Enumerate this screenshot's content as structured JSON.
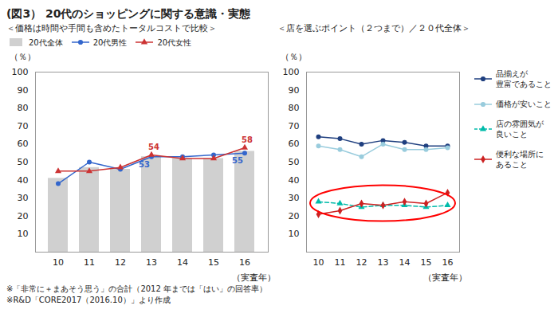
{
  "chart_data": [
    {
      "type": "bar",
      "title": "(図3） 20代のショッピングに関する意識・実態",
      "subtitle": "＜価格は時間や手間も含めたトータルコストで比較＞",
      "categories": [
        "10",
        "11",
        "12",
        "13",
        "14",
        "15",
        "16"
      ],
      "xlabel": "（実査年）",
      "ylabel": "（％）",
      "series": [
        {
          "name": "20代全体",
          "type": "bar",
          "color": "#d0d0d0",
          "values": [
            41,
            47,
            46,
            53,
            52,
            52,
            56
          ]
        },
        {
          "name": "20代男性",
          "type": "line",
          "color": "#3366cc",
          "marker": "circle",
          "values": [
            38,
            50,
            46,
            53,
            53,
            54,
            55
          ],
          "value_labels": [
            null,
            null,
            null,
            "53",
            null,
            null,
            "55"
          ]
        },
        {
          "name": "20代女性",
          "type": "line",
          "color": "#cc3333",
          "marker": "triangle",
          "values": [
            45,
            45,
            47,
            54,
            52,
            52,
            58
          ],
          "value_labels": [
            null,
            null,
            null,
            "54",
            null,
            null,
            "58"
          ]
        }
      ],
      "ylim": [
        0,
        100
      ],
      "yticks": [
        10,
        20,
        30,
        40,
        50,
        60,
        70,
        80,
        90,
        100
      ],
      "legend": "top"
    },
    {
      "type": "line",
      "subtitle": "＜店を選ぶポイント（２つまで）／２０代全体＞",
      "categories": [
        "10",
        "11",
        "12",
        "13",
        "14",
        "15",
        "16"
      ],
      "xlabel": "（実査年）",
      "ylabel": "（％）",
      "series": [
        {
          "name": "品揃えが\n豊富であること",
          "color": "#1f3f7f",
          "marker": "circle",
          "values": [
            64,
            63,
            60,
            62,
            61,
            59,
            59
          ]
        },
        {
          "name": "価格が安いこと",
          "color": "#99ccdd",
          "marker": "circle",
          "values": [
            59,
            57,
            53,
            60,
            57,
            57,
            58
          ]
        },
        {
          "name": "店の雰囲気が\n良いこと",
          "color": "#00bbaa",
          "marker": "triangle",
          "line_style": "dashed",
          "values": [
            28,
            27,
            25,
            26,
            26,
            25,
            26
          ]
        },
        {
          "name": "便利な場所に\nあること",
          "color": "#cc2222",
          "marker": "diamond",
          "values": [
            21,
            23,
            27,
            26,
            28,
            27,
            33
          ]
        }
      ],
      "ylim": [
        0,
        100
      ],
      "yticks": [
        10,
        20,
        30,
        40,
        50,
        60,
        70,
        80,
        90,
        100
      ],
      "legend": "right",
      "annotations": [
        "※「非常に＋まあそう思う」の合計（2012 年までは「はい」の回答率）",
        "※R&D「CORE2017（2016.10）」より作成"
      ]
    }
  ]
}
